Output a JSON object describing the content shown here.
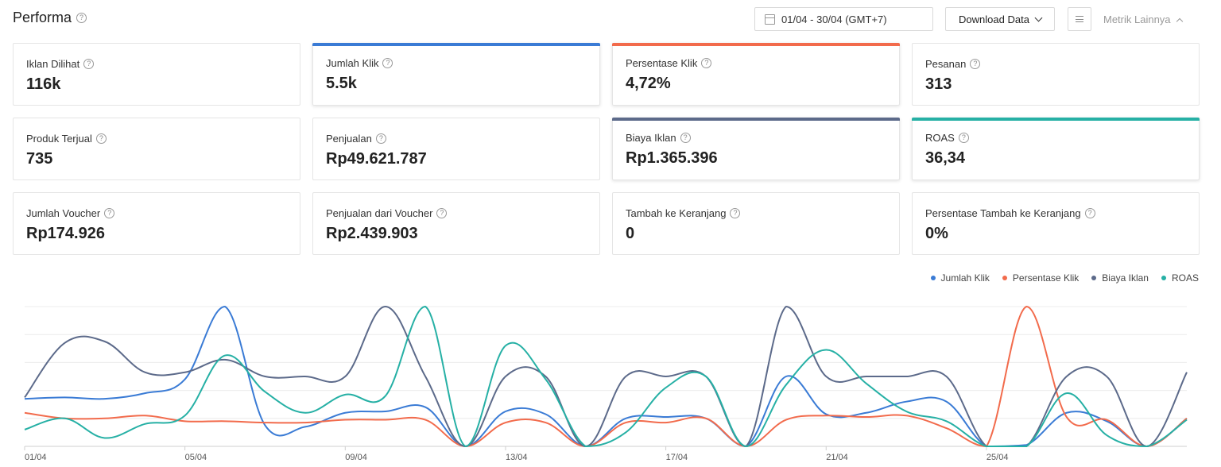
{
  "header": {
    "title": "Performa",
    "date_range": "01/04 - 30/04 (GMT+7)",
    "download_label": "Download Data",
    "more_metrics_label": "Metrik Lainnya"
  },
  "metrics": [
    {
      "label": "Iklan Dilihat",
      "value": "116k",
      "active": false,
      "color": ""
    },
    {
      "label": "Jumlah Klik",
      "value": "5.5k",
      "active": true,
      "color": "#3a7bd5"
    },
    {
      "label": "Persentase Klik",
      "value": "4,72%",
      "active": true,
      "color": "#f26b4c"
    },
    {
      "label": "Pesanan",
      "value": "313",
      "active": false,
      "color": ""
    },
    {
      "label": "Produk Terjual",
      "value": "735",
      "active": false,
      "color": ""
    },
    {
      "label": "Penjualan",
      "value": "Rp49.621.787",
      "active": false,
      "color": ""
    },
    {
      "label": "Biaya Iklan",
      "value": "Rp1.365.396",
      "active": true,
      "color": "#5c6a8a"
    },
    {
      "label": "ROAS",
      "value": "36,34",
      "active": true,
      "color": "#26b0a5"
    },
    {
      "label": "Jumlah Voucher",
      "value": "Rp174.926",
      "active": false,
      "color": ""
    },
    {
      "label": "Penjualan dari Voucher",
      "value": "Rp2.439.903",
      "active": false,
      "color": ""
    },
    {
      "label": "Tambah ke Keranjang",
      "value": "0",
      "active": false,
      "color": ""
    },
    {
      "label": "Persentase Tambah ke Keranjang",
      "value": "0%",
      "active": false,
      "color": ""
    }
  ],
  "chart_data": {
    "type": "line",
    "x": [
      "01/04",
      "02/04",
      "03/04",
      "04/04",
      "05/04",
      "06/04",
      "07/04",
      "08/04",
      "09/04",
      "10/04",
      "11/04",
      "12/04",
      "13/04",
      "14/04",
      "15/04",
      "16/04",
      "17/04",
      "18/04",
      "19/04",
      "20/04",
      "21/04",
      "22/04",
      "23/04",
      "24/04",
      "25/04",
      "26/04",
      "27/04",
      "28/04",
      "29/04",
      "30/04"
    ],
    "x_tick_labels": [
      "01/04",
      "05/04",
      "09/04",
      "13/04",
      "17/04",
      "21/04",
      "25/04"
    ],
    "normalized": true,
    "ylim": [
      0,
      1
    ],
    "grid": true,
    "legend_position": "top-right",
    "series": [
      {
        "name": "Jumlah Klik",
        "color": "#3a7bd5",
        "values": [
          0.34,
          0.35,
          0.34,
          0.38,
          0.48,
          1.0,
          0.15,
          0.14,
          0.24,
          0.25,
          0.28,
          0.0,
          0.25,
          0.23,
          0.0,
          0.2,
          0.21,
          0.2,
          0.0,
          0.5,
          0.23,
          0.24,
          0.32,
          0.32,
          0.0,
          0.01,
          0.24,
          0.18,
          0.0,
          0.2
        ]
      },
      {
        "name": "Persentase Klik",
        "color": "#f26b4c",
        "values": [
          0.24,
          0.2,
          0.2,
          0.22,
          0.18,
          0.18,
          0.17,
          0.17,
          0.19,
          0.19,
          0.19,
          0.0,
          0.17,
          0.17,
          0.0,
          0.17,
          0.17,
          0.2,
          0.0,
          0.19,
          0.22,
          0.21,
          0.22,
          0.13,
          0.0,
          1.0,
          0.21,
          0.19,
          0.0,
          0.2
        ]
      },
      {
        "name": "Biaya Iklan",
        "color": "#5c6a8a",
        "values": [
          0.35,
          0.74,
          0.75,
          0.53,
          0.53,
          0.62,
          0.5,
          0.5,
          0.5,
          1.0,
          0.5,
          0.0,
          0.5,
          0.5,
          0.0,
          0.5,
          0.5,
          0.5,
          0.0,
          1.0,
          0.5,
          0.5,
          0.5,
          0.5,
          0.0,
          0.0,
          0.5,
          0.5,
          0.0,
          0.53
        ]
      },
      {
        "name": "ROAS",
        "color": "#26b0a5",
        "values": [
          0.12,
          0.2,
          0.06,
          0.16,
          0.22,
          0.65,
          0.39,
          0.24,
          0.37,
          0.36,
          1.0,
          0.0,
          0.72,
          0.48,
          0.0,
          0.1,
          0.42,
          0.5,
          0.0,
          0.44,
          0.69,
          0.45,
          0.25,
          0.18,
          0.0,
          0.0,
          0.38,
          0.08,
          0.0,
          0.19
        ]
      }
    ]
  }
}
